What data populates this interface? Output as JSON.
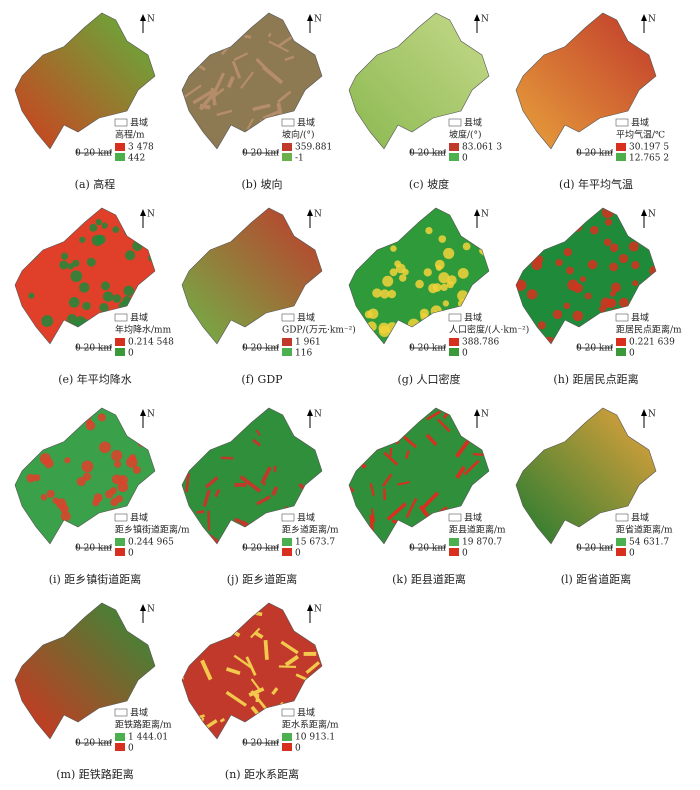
{
  "legend_boundary": "县域",
  "scale_label": "0 20 km",
  "north": "N",
  "panels": [
    {
      "caption": "(a) 高程",
      "legend_title": "高程/m",
      "max": "3 478",
      "min": "442"
    },
    {
      "caption": "(b) 坡向",
      "legend_title": "坡向/(°)",
      "max": "359.881",
      "min": "-1"
    },
    {
      "caption": "(c) 坡度",
      "legend_title": "坡度/(°)",
      "max": "83.061 3",
      "min": "0"
    },
    {
      "caption": "(d) 年平均气温",
      "legend_title": "平均气温/℃",
      "max": "30.197 5",
      "min": "12.765 2"
    },
    {
      "caption": "(e) 年平均降水",
      "legend_title": "年均降水/mm",
      "max": "0.214 548",
      "min": "0"
    },
    {
      "caption": "(f) GDP",
      "legend_title": "GDP/(万元·km⁻²)",
      "max": "1 961",
      "min": "116"
    },
    {
      "caption": "(g) 人口密度",
      "legend_title": "人口密度/(人·km⁻²)",
      "max": "388.786",
      "min": "0"
    },
    {
      "caption": "(h) 距居民点距离",
      "legend_title": "距居民点距离/m",
      "max": "0.221 639",
      "min": "0"
    },
    {
      "caption": "(i) 距乡镇街道距离",
      "legend_title": "距乡镇街道距离/m",
      "max": "0.244 965",
      "min": "0"
    },
    {
      "caption": "(j) 距乡道距离",
      "legend_title": "距乡道距离/m",
      "max": "15 673.7",
      "min": "0"
    },
    {
      "caption": "(k) 距县道距离",
      "legend_title": "距县道距离/m",
      "max": "19 870.7",
      "min": "0"
    },
    {
      "caption": "(l) 距省道距离",
      "legend_title": "距省道距离/m",
      "max": "54 631.7",
      "min": "0"
    },
    {
      "caption": "(m) 距铁路距离",
      "legend_title": "距铁路距离/m",
      "max": "1 444.01",
      "min": "0"
    },
    {
      "caption": "(n) 距水系距离",
      "legend_title": "距水系距离/m",
      "max": "10 913.1",
      "min": "0"
    }
  ]
}
